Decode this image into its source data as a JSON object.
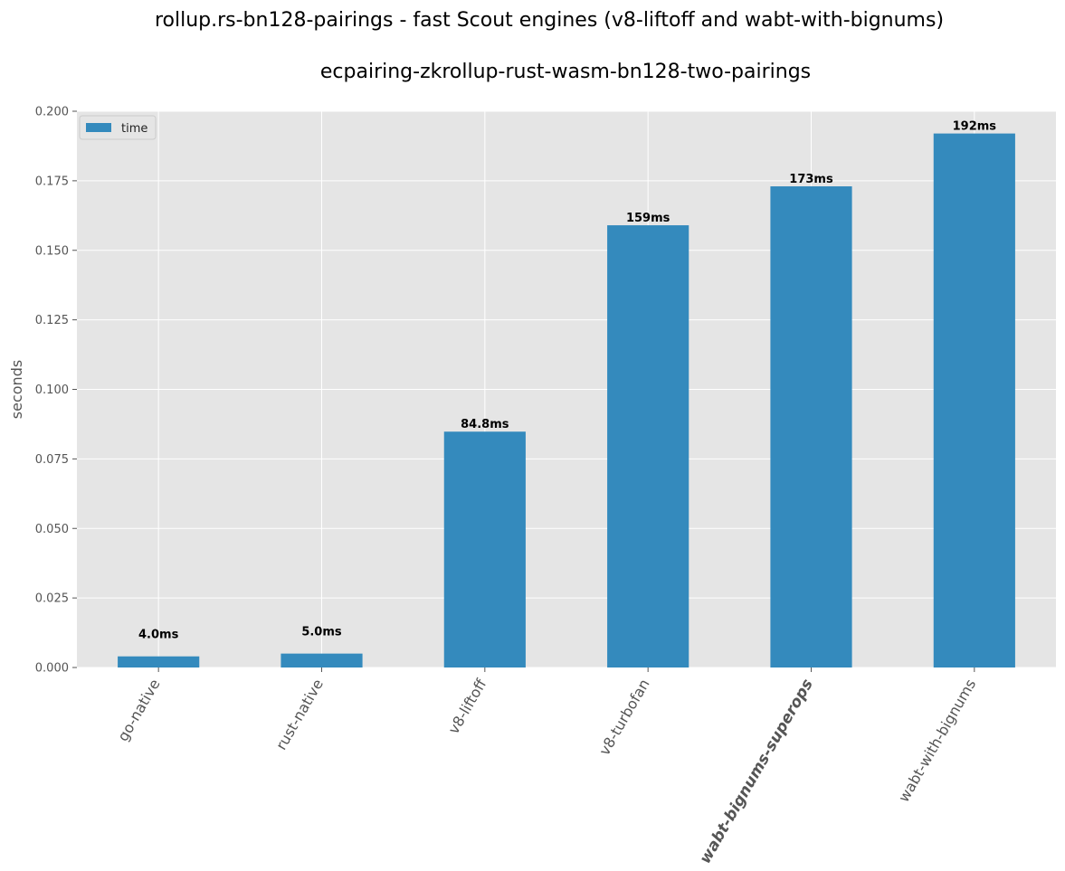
{
  "suptitle": "rollup.rs-bn128-pairings - fast Scout engines (v8-liftoff and wabt-with-bignums)",
  "chart_data": {
    "type": "bar",
    "title": "ecpairing-zkrollup-rust-wasm-bn128-two-pairings",
    "xlabel": "",
    "ylabel": "seconds",
    "ylim": [
      0,
      0.2
    ],
    "yticks": [
      "0.000",
      "0.025",
      "0.050",
      "0.075",
      "0.100",
      "0.125",
      "0.150",
      "0.175",
      "0.200"
    ],
    "categories": [
      "go-native",
      "rust-native",
      "v8-liftoff",
      "v8-turbofan",
      "wabt-bignums-superops",
      "wabt-with-bignums"
    ],
    "series": [
      {
        "name": "time",
        "values": [
          0.004,
          0.005,
          0.0848,
          0.159,
          0.173,
          0.192
        ],
        "labels": [
          "4.0ms",
          "5.0ms",
          "84.8ms",
          "159ms",
          "173ms",
          "192ms"
        ]
      }
    ],
    "highlight_category": "wabt-bignums-superops",
    "grid": true,
    "legend_position": "top-left",
    "colors": {
      "bar": "#348abd",
      "plot_background": "#e5e5e5",
      "grid": "#ffffff",
      "highlight_label": "#2ca02c"
    }
  }
}
